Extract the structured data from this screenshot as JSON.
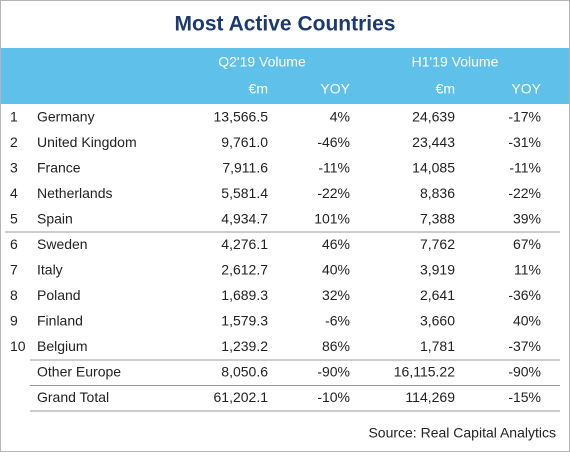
{
  "title": "Most Active Countries",
  "header": {
    "groups": [
      "Q2'19  Volume",
      "H1'19 Volume"
    ],
    "columns": [
      "€m",
      "YOY",
      "€m",
      "YOY"
    ]
  },
  "rows": [
    {
      "rank": "1",
      "name": "Germany",
      "cells": [
        "13,566.5",
        "4%",
        "24,639",
        "-17%"
      ]
    },
    {
      "rank": "2",
      "name": "United Kingdom",
      "cells": [
        "9,761.0",
        "-46%",
        "23,443",
        "-31%"
      ]
    },
    {
      "rank": "3",
      "name": "France",
      "cells": [
        "7,911.6",
        "-11%",
        "14,085",
        "-11%"
      ]
    },
    {
      "rank": "4",
      "name": "Netherlands",
      "cells": [
        "5,581.4",
        "-22%",
        "8,836",
        "-22%"
      ]
    },
    {
      "rank": "5",
      "name": "Spain",
      "cells": [
        "4,934.7",
        "101%",
        "7,388",
        "39%"
      ]
    },
    {
      "rank": "6",
      "name": "Sweden",
      "cells": [
        "4,276.1",
        "46%",
        "7,762",
        "67%"
      ]
    },
    {
      "rank": "7",
      "name": "Italy",
      "cells": [
        "2,612.7",
        "40%",
        "3,919",
        "11%"
      ]
    },
    {
      "rank": "8",
      "name": "Poland",
      "cells": [
        "1,689.3",
        "32%",
        "2,641",
        "-36%"
      ]
    },
    {
      "rank": "9",
      "name": "Finland",
      "cells": [
        "1,579.3",
        "-6%",
        "3,660",
        "40%"
      ]
    },
    {
      "rank": "10",
      "name": "Belgium",
      "cells": [
        "1,239.2",
        "86%",
        "1,781",
        "-37%"
      ]
    },
    {
      "name": "Other Europe",
      "cells": [
        "8,050.6",
        "-90%",
        "16,115.22",
        "-90%"
      ]
    },
    {
      "name": "Grand Total",
      "cells": [
        "61,202.1",
        "-10%",
        "114,269",
        "-15%"
      ]
    }
  ],
  "source": "Source: Real Capital Analytics"
}
